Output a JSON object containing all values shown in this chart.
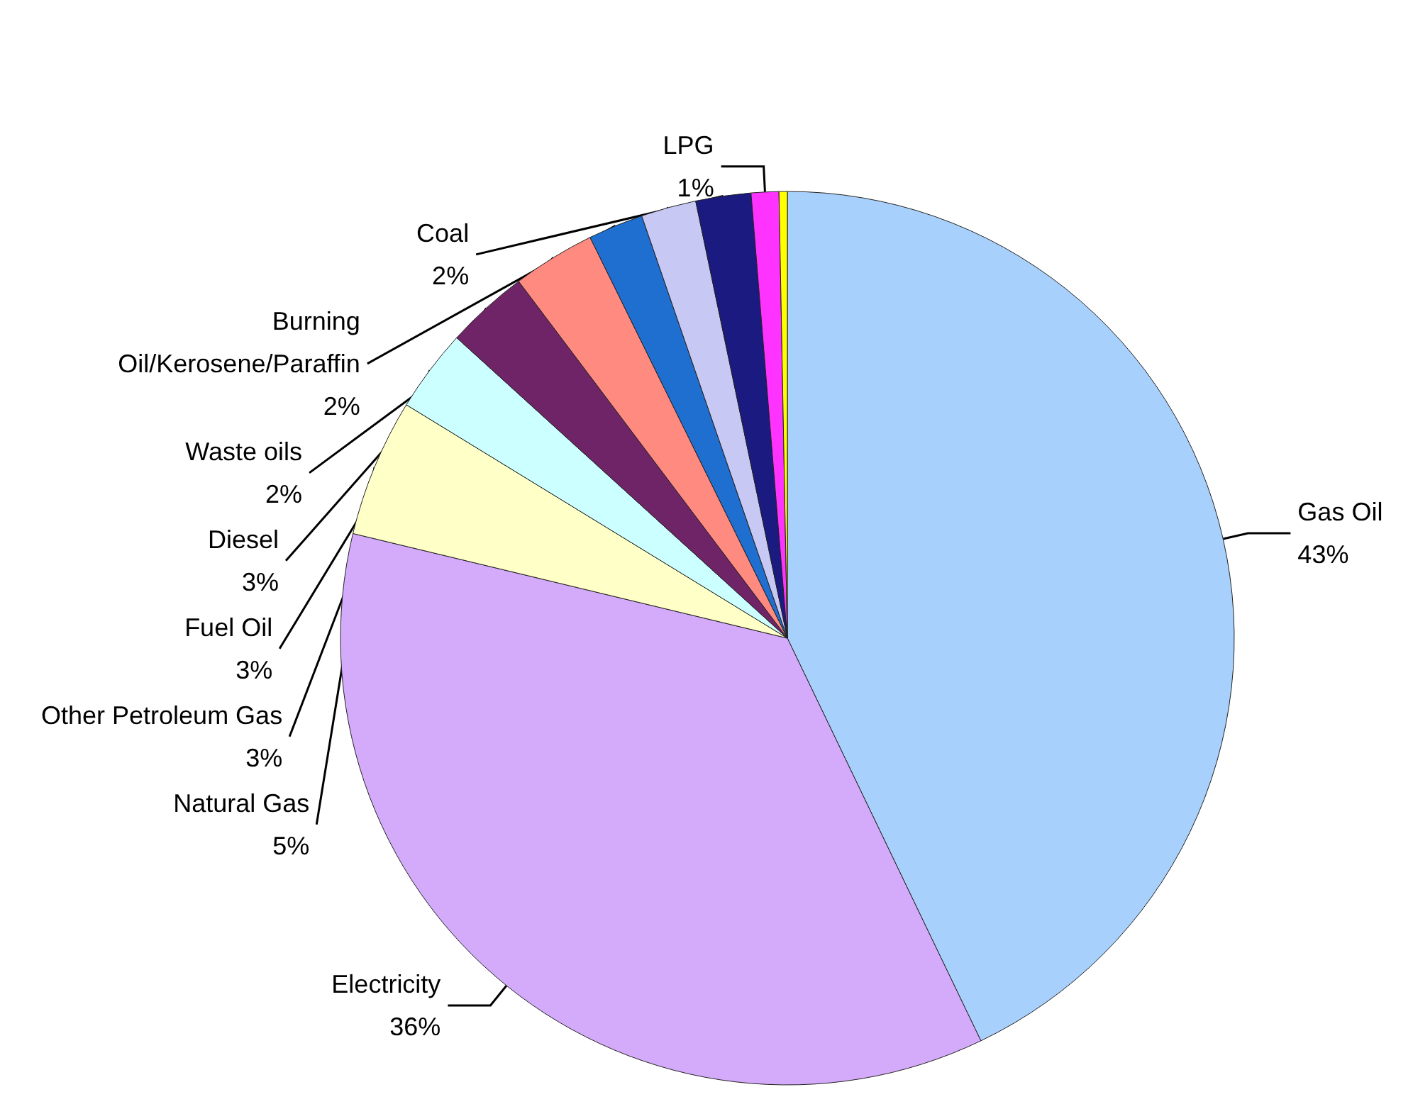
{
  "chart_data": {
    "type": "pie",
    "categories": [
      "Gas Oil",
      "Electricity",
      "Natural Gas",
      "Other Petroleum Gas",
      "Fuel Oil",
      "Diesel",
      "Burning\nOil/Kerosene/Paraffin",
      "Waste oils",
      "Coal",
      "LPG",
      null
    ],
    "values": [
      43,
      36,
      5,
      3,
      3,
      3,
      2,
      2,
      2,
      1,
      0.3
    ],
    "value_labels": [
      "43%",
      "36%",
      "5%",
      "3%",
      "3%",
      "3%",
      "2%",
      "2%",
      "2%",
      "1%",
      null
    ],
    "colors": [
      "#a8d0fc",
      "#d4aafa",
      "#ffffc8",
      "#ccffff",
      "#6e2466",
      "#ff8a80",
      "#1f6fd0",
      "#c8c8f5",
      "#1a1a80",
      "#ff33ff",
      "#ffff00"
    ]
  }
}
